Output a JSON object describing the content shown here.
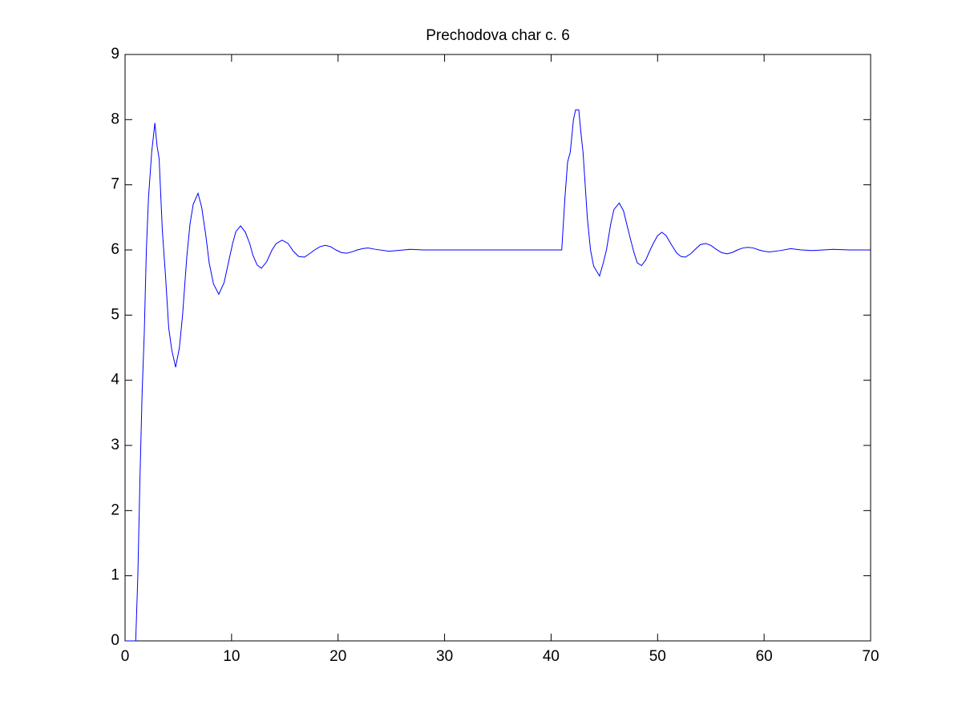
{
  "chart_data": {
    "type": "line",
    "title": "Prechodova char c. 6",
    "x": [
      0,
      1.0,
      1.2,
      1.4,
      1.6,
      1.8,
      2.0,
      2.2,
      2.5,
      2.8,
      3.0,
      3.2,
      3.5,
      3.8,
      4.1,
      4.4,
      4.75,
      5.1,
      5.4,
      5.8,
      6.1,
      6.4,
      6.85,
      7.2,
      7.6,
      7.9,
      8.3,
      8.8,
      9.3,
      9.7,
      10.1,
      10.4,
      10.85,
      11.3,
      11.7,
      12.0,
      12.4,
      12.8,
      13.3,
      13.8,
      14.2,
      14.75,
      15.3,
      15.8,
      16.3,
      16.85,
      17.3,
      17.8,
      18.3,
      18.8,
      19.3,
      19.8,
      20.3,
      20.8,
      21.3,
      21.8,
      22.3,
      22.8,
      23.5,
      24.8,
      26.8,
      28,
      31,
      41.0,
      41.3,
      41.55,
      41.8,
      42.1,
      42.3,
      42.6,
      42.8,
      43.0,
      43.4,
      43.7,
      44.0,
      44.55,
      44.9,
      45.2,
      45.6,
      45.9,
      46.4,
      46.8,
      47.1,
      47.4,
      47.8,
      48.1,
      48.5,
      48.9,
      49.3,
      49.6,
      50.0,
      50.4,
      50.8,
      51.3,
      51.8,
      52.2,
      52.6,
      53.1,
      53.6,
      54.0,
      54.5,
      55.0,
      55.5,
      56.0,
      56.5,
      57.0,
      57.5,
      58.0,
      58.5,
      59.0,
      59.5,
      60.0,
      60.5,
      61.5,
      62.5,
      63.5,
      64.5,
      66.5,
      68,
      70
    ],
    "series": [
      {
        "color": "#0000ff",
        "values": [
          0,
          0,
          1.0,
          2.5,
          3.8,
          4.7,
          6.0,
          6.8,
          7.5,
          7.95,
          7.6,
          7.4,
          6.3,
          5.6,
          4.8,
          4.45,
          4.2,
          4.5,
          5.0,
          5.9,
          6.4,
          6.7,
          6.87,
          6.65,
          6.2,
          5.8,
          5.48,
          5.32,
          5.5,
          5.8,
          6.1,
          6.28,
          6.37,
          6.27,
          6.1,
          5.92,
          5.77,
          5.72,
          5.82,
          6.0,
          6.1,
          6.15,
          6.1,
          5.98,
          5.9,
          5.89,
          5.94,
          6.0,
          6.05,
          6.07,
          6.05,
          6.0,
          5.96,
          5.95,
          5.97,
          6.0,
          6.02,
          6.03,
          6.01,
          5.98,
          6.01,
          6.0,
          6.0,
          6.0,
          6.8,
          7.35,
          7.5,
          8.0,
          8.15,
          8.15,
          7.8,
          7.5,
          6.5,
          6.0,
          5.75,
          5.6,
          5.8,
          6.0,
          6.4,
          6.62,
          6.72,
          6.6,
          6.4,
          6.2,
          5.95,
          5.8,
          5.76,
          5.85,
          6.0,
          6.1,
          6.22,
          6.27,
          6.22,
          6.08,
          5.95,
          5.9,
          5.89,
          5.94,
          6.02,
          6.08,
          6.1,
          6.07,
          6.01,
          5.96,
          5.94,
          5.96,
          6.0,
          6.03,
          6.04,
          6.03,
          6.0,
          5.98,
          5.97,
          5.99,
          6.02,
          6.0,
          5.99,
          6.01,
          6.0,
          6.0
        ]
      }
    ],
    "xlim": [
      0,
      70
    ],
    "xticks": [
      0,
      10,
      20,
      30,
      40,
      50,
      60,
      70
    ],
    "ylim": [
      0,
      9
    ],
    "yticks": [
      0,
      1,
      2,
      3,
      4,
      5,
      6,
      7,
      8,
      9
    ]
  }
}
